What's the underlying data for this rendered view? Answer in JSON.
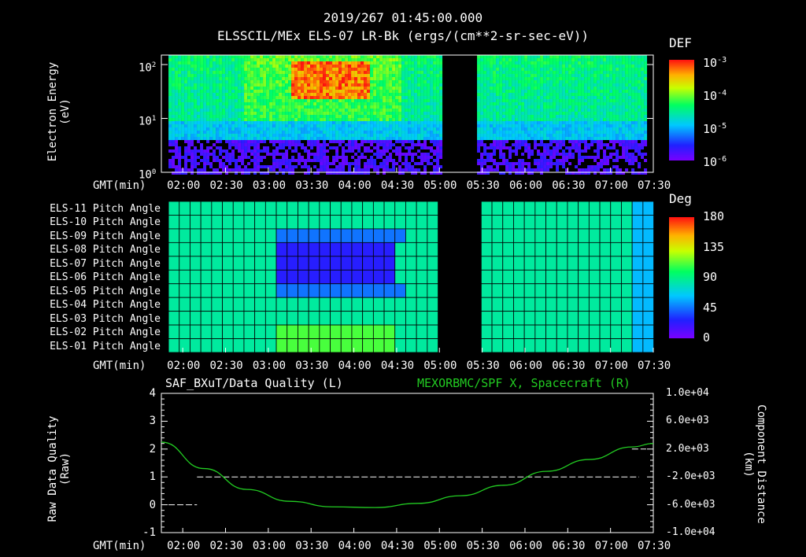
{
  "header": {
    "title_line1": "2019/267 01:45:00.000",
    "title_line2": "ELSSCIL/MEx ELS-07 LR-Bk  (ergs/(cm**2-sr-sec-eV))"
  },
  "time_axis": {
    "label": "GMT(min)",
    "ticks": [
      "02:00",
      "02:30",
      "03:00",
      "03:30",
      "04:00",
      "04:30",
      "05:00",
      "05:30",
      "06:00",
      "06:30",
      "07:00",
      "07:30"
    ]
  },
  "panel1": {
    "ylabel_line1": "Electron Energy",
    "ylabel_line2": "(eV)",
    "yticks": [
      {
        "base": "10",
        "exp": "2"
      },
      {
        "base": "10",
        "exp": "1"
      },
      {
        "base": "10",
        "exp": "0"
      }
    ],
    "colorbar_title": "DEF",
    "colorbar_ticks": [
      {
        "base": "10",
        "exp": "-3"
      },
      {
        "base": "10",
        "exp": "-4"
      },
      {
        "base": "10",
        "exp": "-5"
      },
      {
        "base": "10",
        "exp": "-6"
      }
    ]
  },
  "panel2": {
    "colorbar_title": "Deg",
    "colorbar_ticks": [
      "180",
      "135",
      "90",
      "45",
      "0"
    ],
    "rows": [
      "ELS-11 Pitch Angle",
      "ELS-10 Pitch Angle",
      "ELS-09 Pitch Angle",
      "ELS-08 Pitch Angle",
      "ELS-07 Pitch Angle",
      "ELS-06 Pitch Angle",
      "ELS-05 Pitch Angle",
      "ELS-04 Pitch Angle",
      "ELS-03 Pitch Angle",
      "ELS-02 Pitch Angle",
      "ELS-01 Pitch Angle"
    ]
  },
  "panel3": {
    "left_title": "SAF_BXuT/Data Quality (L)",
    "right_title": "MEXORBMC/SPF X, Spacecraft (R)",
    "left_ylabel_line1": "Raw Data Quality",
    "left_ylabel_line2": "(Raw)",
    "right_ylabel_line1": "Component Distance",
    "right_ylabel_line2": "(km)",
    "left_ticks": [
      "4",
      "3",
      "2",
      "1",
      "0",
      "-1"
    ],
    "right_ticks": [
      "1.0e+04",
      "6.0e+03",
      "2.0e+03",
      "-2.0e+03",
      "-6.0e+03",
      "-1.0e+04"
    ],
    "colors": {
      "spacecraft_x": "#22cc22",
      "quality": "#ffffff"
    }
  },
  "chart_data": [
    {
      "type": "heatmap",
      "title": "ELSSCIL/MEx ELS-07 LR-Bk  (ergs/(cm**2-sr-sec-eV))",
      "xlabel": "GMT(min)",
      "ylabel": "Electron Energy (eV)",
      "x_range": [
        "01:45",
        "07:30"
      ],
      "ylim": [
        1,
        150
      ],
      "y_scale": "log",
      "colorbar": {
        "label": "DEF",
        "range": [
          1e-06,
          0.001
        ],
        "scale": "log"
      },
      "data_gap": [
        "05:00",
        "05:25"
      ],
      "features": [
        {
          "x_range": [
            "03:15",
            "04:10"
          ],
          "y_range": [
            25,
            120
          ],
          "level": 0.001
        },
        {
          "x_range": [
            "01:50",
            "07:25"
          ],
          "y_range": [
            1,
            4
          ],
          "level": 1e-06
        }
      ]
    },
    {
      "type": "heatmap",
      "title": "",
      "xlabel": "GMT(min)",
      "categories": [
        "ELS-01",
        "ELS-02",
        "ELS-03",
        "ELS-04",
        "ELS-05",
        "ELS-06",
        "ELS-07",
        "ELS-08",
        "ELS-09",
        "ELS-10",
        "ELS-11"
      ],
      "x_range": [
        "01:45",
        "07:30"
      ],
      "colorbar": {
        "label": "Deg",
        "range": [
          0,
          180
        ]
      },
      "data_gap": [
        "05:00",
        "05:25"
      ],
      "features": [
        {
          "x_range": [
            "03:05",
            "04:25"
          ],
          "rows": [
            "ELS-06",
            "ELS-07",
            "ELS-08"
          ],
          "value": 25
        },
        {
          "x_range": [
            "03:00",
            "04:30"
          ],
          "rows": [
            "ELS-05",
            "ELS-09"
          ],
          "value": 45
        },
        {
          "x_range": [
            "03:00",
            "04:25"
          ],
          "rows": [
            "ELS-01",
            "ELS-02"
          ],
          "value": 110
        }
      ],
      "background_value": 85
    },
    {
      "type": "line",
      "title": "SAF_BXuT/Data Quality (L) / MEXORBMC/SPF X, Spacecraft (R)",
      "xlabel": "GMT(min)",
      "ylabel": "Raw Data Quality (Raw)",
      "ylabel_right": "Component Distance (km)",
      "ylim": [
        -1,
        4
      ],
      "ylim_right": [
        -10000,
        10000
      ],
      "series": [
        {
          "name": "SAF_BXuT/Data Quality",
          "axis": "left",
          "style": "dashed",
          "segments": [
            {
              "x": [
                "01:50",
                "02:10"
              ],
              "y": 0
            },
            {
              "x": [
                "02:10",
                "07:20"
              ],
              "y": 1
            },
            {
              "x": [
                "07:15",
                "07:25"
              ],
              "y": 2
            }
          ]
        },
        {
          "name": "MEXORBMC/SPF X, Spacecraft",
          "axis": "right",
          "x": [
            "01:45",
            "02:15",
            "02:45",
            "03:15",
            "03:45",
            "04:15",
            "04:45",
            "05:15",
            "05:45",
            "06:15",
            "06:45",
            "07:15",
            "07:30"
          ],
          "y": [
            3000,
            -800,
            -3800,
            -5500,
            -6300,
            -6400,
            -5800,
            -4700,
            -3200,
            -1200,
            500,
            2300,
            2800
          ]
        }
      ]
    }
  ]
}
